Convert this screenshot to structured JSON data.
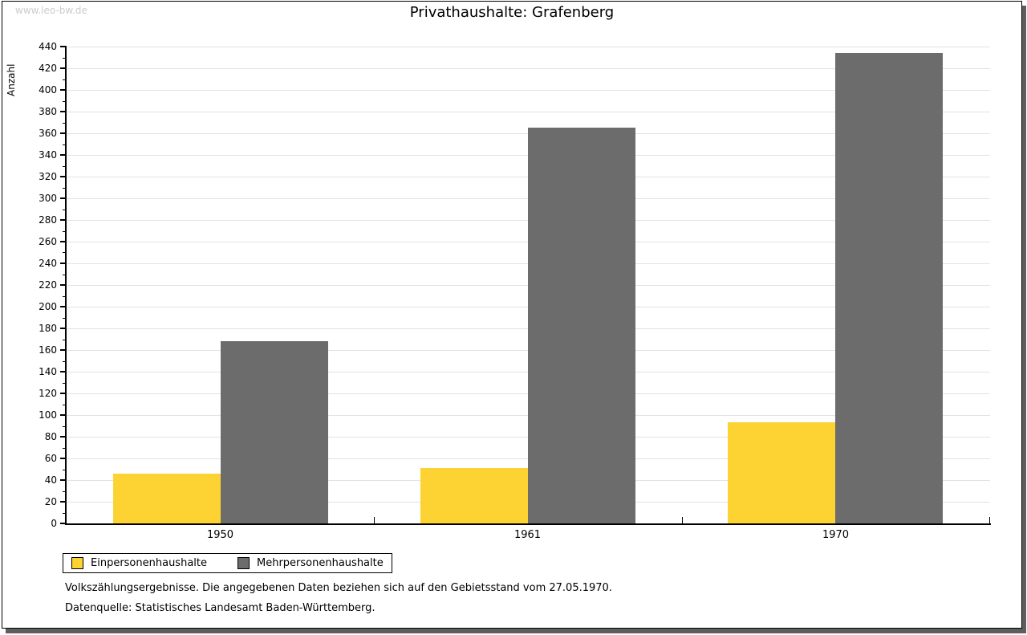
{
  "page": {
    "watermark": "www.leo-bw.de",
    "title": "Privathaushalte: Grafenberg",
    "footnotes": {
      "line1": "Volkszählungsergebnisse. Die angegebenen Daten beziehen sich auf den Gebietsstand vom 27.05.1970.",
      "line2": "Datenquelle: Statistisches Landesamt Baden-Württemberg."
    }
  },
  "chart_data": {
    "type": "bar",
    "title": "Privathaushalte: Grafenberg",
    "ylabel": "Anzahl",
    "xlabel": "",
    "categories": [
      "1950",
      "1961",
      "1970"
    ],
    "series": [
      {
        "name": "Einpersonenhaushalte",
        "color": "#fcd333",
        "values": [
          46,
          51,
          93
        ]
      },
      {
        "name": "Mehrpersonenhaushalte",
        "color": "#6c6c6c",
        "values": [
          168,
          365,
          434
        ]
      }
    ],
    "ylim": [
      0,
      440
    ],
    "ytick_step": 20,
    "yminor_step": 10,
    "grid": true,
    "legend_position": "bottom-left"
  },
  "colors": {
    "grid": "#e2e2e2",
    "axis": "#000000",
    "watermark": "#cccccc",
    "shadow": "#5e5e5e",
    "background": "#ffffff"
  }
}
